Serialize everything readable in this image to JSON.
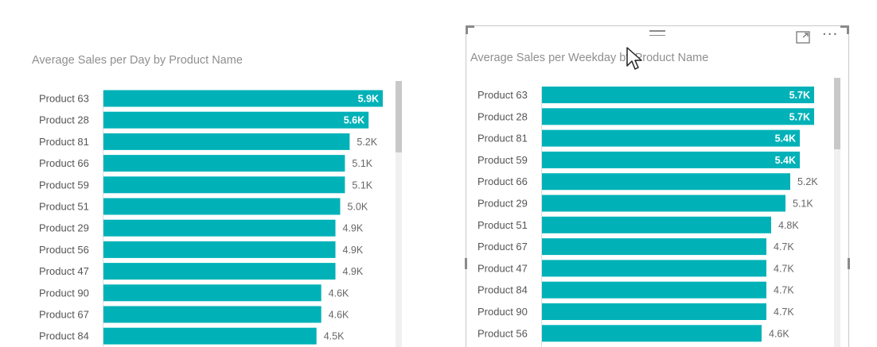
{
  "visuals": [
    {
      "title": "Average Sales per Day by Product Name"
    },
    {
      "title": "Average Sales per Weekday by Product Name"
    }
  ],
  "chart_data": [
    {
      "type": "bar",
      "orientation": "horizontal",
      "title": "Average Sales per Day by Product Name",
      "categories": [
        "Product 63",
        "Product 28",
        "Product 81",
        "Product 66",
        "Product 59",
        "Product 51",
        "Product 29",
        "Product 56",
        "Product 47",
        "Product 90",
        "Product 67",
        "Product 84"
      ],
      "values": [
        5900,
        5600,
        5200,
        5100,
        5100,
        5000,
        4900,
        4900,
        4900,
        4600,
        4600,
        4500
      ],
      "labels": [
        "5.9K",
        "5.6K",
        "5.2K",
        "5.1K",
        "5.1K",
        "5.0K",
        "4.9K",
        "4.9K",
        "4.9K",
        "4.6K",
        "4.6K",
        "4.5K"
      ],
      "bar_color": "#00b2b8",
      "grid": false
    },
    {
      "type": "bar",
      "orientation": "horizontal",
      "title": "Average Sales per Weekday by Product Name",
      "categories": [
        "Product 63",
        "Product 28",
        "Product 81",
        "Product 59",
        "Product 66",
        "Product 29",
        "Product 51",
        "Product 67",
        "Product 47",
        "Product 84",
        "Product 90",
        "Product 56"
      ],
      "values": [
        5700,
        5700,
        5400,
        5400,
        5200,
        5100,
        4800,
        4700,
        4700,
        4700,
        4700,
        4600
      ],
      "labels": [
        "5.7K",
        "5.7K",
        "5.4K",
        "5.4K",
        "5.2K",
        "5.1K",
        "4.8K",
        "4.7K",
        "4.7K",
        "4.7K",
        "4.7K",
        "4.6K"
      ],
      "bar_color": "#00b2b8",
      "grid": false
    }
  ],
  "icons": {
    "drag": "drag-handle-icon",
    "focus": "focus-mode-icon",
    "more": "more-options-icon",
    "cursor": "mouse-pointer-icon"
  }
}
